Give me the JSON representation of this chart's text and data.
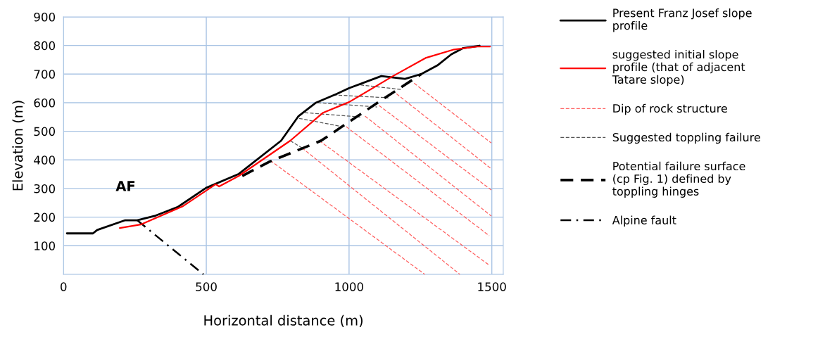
{
  "chart_data": {
    "type": "line",
    "xlabel": "Horizontal distance (m)",
    "ylabel": "Elevation (m)",
    "xlim": [
      0,
      1540
    ],
    "ylim": [
      0,
      900
    ],
    "xticks": [
      0,
      500,
      1000,
      1500
    ],
    "yticks": [
      100,
      200,
      300,
      400,
      500,
      600,
      700,
      800,
      900
    ],
    "grid": true,
    "legend": "right",
    "annotations": [
      {
        "text": "AF",
        "x": 258,
        "y": 189
      }
    ],
    "series": [
      {
        "name": "Present Franz Josef slope profile",
        "color": "#000000",
        "line_style": "solid",
        "x": [
          12,
          103,
          118,
          216,
          258,
          319,
          401,
          499,
          614,
          762,
          823,
          884,
          958,
          1000,
          1113,
          1196,
          1253,
          1309,
          1358,
          1400,
          1457
        ],
        "values": [
          143,
          143,
          155,
          189,
          189,
          204,
          236,
          302,
          351,
          467,
          553,
          600,
          631,
          651,
          693,
          683,
          700,
          730,
          769,
          791,
          799
        ]
      },
      {
        "name": "suggested initial slope profile (that of adjacent Tatare slope)",
        "color": "#ff0000",
        "line_style": "solid",
        "x": [
          197,
          270,
          418,
          533,
          545,
          614,
          794,
          909,
          1000,
          1154,
          1270,
          1368,
          1449,
          1494
        ],
        "values": [
          162,
          174,
          238,
          315,
          307,
          344,
          467,
          565,
          602,
          693,
          757,
          786,
          796,
          796
        ]
      },
      {
        "name": "Dip of rock structure",
        "color": "#ff6060",
        "line_style": "dashed",
        "x": [
          1228,
          1498,
          null,
          1166,
          1498,
          null,
          1105,
          1498,
          null,
          1056,
          1498,
          null,
          990,
          1491,
          null,
          896,
          1491,
          null,
          835,
          1388,
          null,
          724,
          1265
        ],
        "values": [
          668,
          459,
          null,
          631,
          369,
          null,
          590,
          295,
          null,
          553,
          204,
          null,
          516,
          135,
          null,
          467,
          32,
          null,
          442,
          0,
          null,
          398,
          0
        ]
      },
      {
        "name": "Suggested toppling failure",
        "color": "#555555",
        "line_style": "dashed",
        "x": [
          1040,
          1184,
          null,
          945,
          1138,
          null,
          890,
          1098,
          null,
          845,
          1039,
          null,
          825,
          978,
          null,
          794,
          835
        ],
        "values": [
          662,
          646,
          null,
          627,
          617,
          null,
          600,
          585,
          null,
          565,
          550,
          null,
          545,
          516,
          null,
          467,
          442
        ]
      },
      {
        "name": "Potential failure surface (cp Fig. 1) defined by toppling hinges",
        "color": "#000000",
        "line_style": "dashed",
        "x": [
          626,
          720,
          902,
          975,
          1100,
          1253
        ],
        "values": [
          344,
          393,
          467,
          516,
          600,
          700
        ]
      },
      {
        "name": "Alpine fault",
        "color": "#000000",
        "line_style": "dashdot",
        "x": [
          258,
          490
        ],
        "values": [
          189,
          0
        ]
      }
    ]
  }
}
